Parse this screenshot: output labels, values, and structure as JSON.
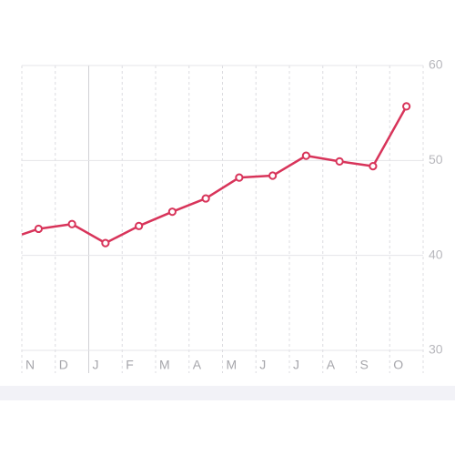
{
  "chart_data": {
    "type": "line",
    "categories": [
      "N",
      "D",
      "J",
      "F",
      "M",
      "A",
      "M",
      "J",
      "J",
      "A",
      "S",
      "O"
    ],
    "line_start": 42.2,
    "series": [
      {
        "color": "#d8345a",
        "values": [
          42.8,
          43.3,
          41.3,
          43.1,
          44.6,
          46.0,
          48.2,
          48.4,
          50.5,
          49.9,
          49.4,
          55.7
        ]
      }
    ],
    "year_start_index": 2,
    "ylim": [
      30,
      60
    ],
    "yticks": [
      30,
      40,
      50,
      60
    ],
    "grid": true
  }
}
